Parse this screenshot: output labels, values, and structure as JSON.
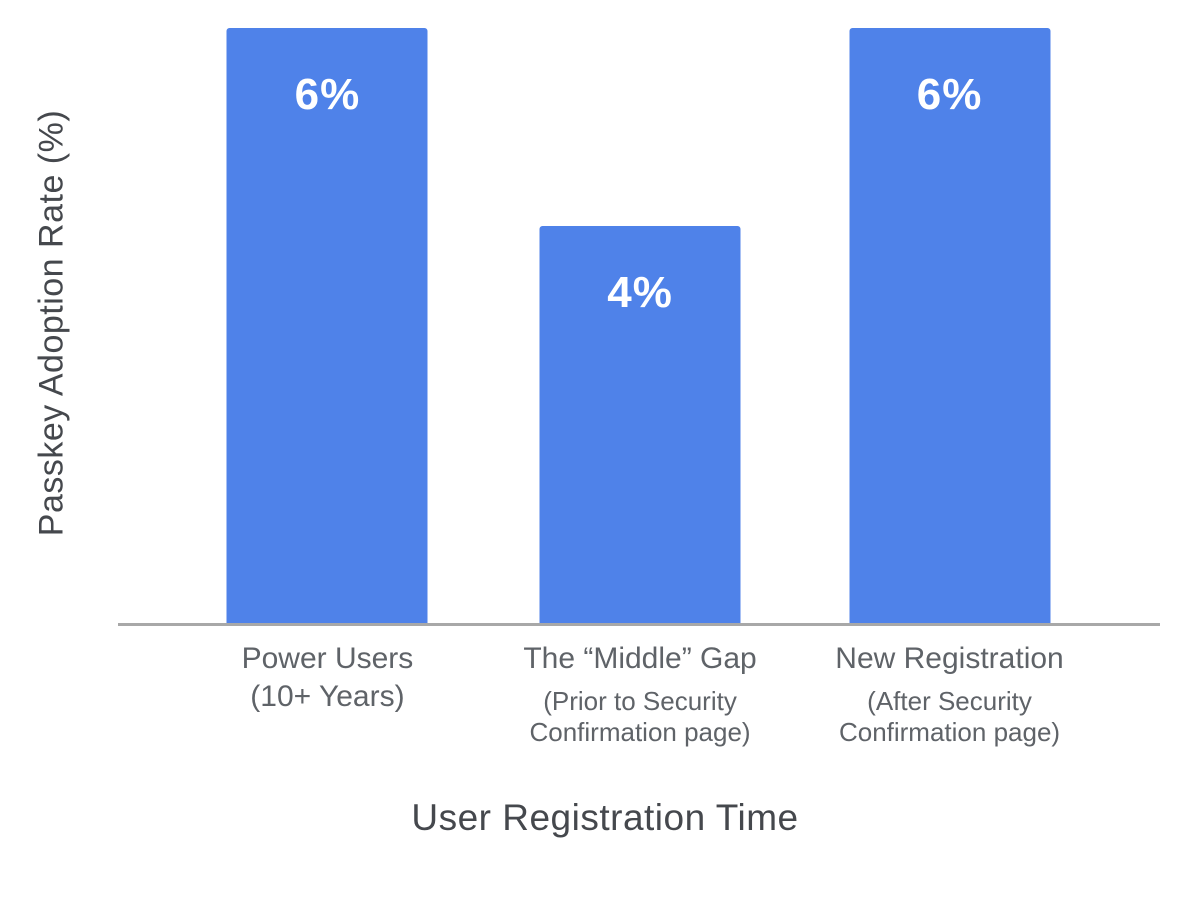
{
  "chart_data": {
    "type": "bar",
    "title": "",
    "xlabel": "User Registration Time",
    "ylabel": "Passkey Adoption Rate (%)",
    "ylim": [
      0,
      6
    ],
    "grid": false,
    "legend": false,
    "bar_color": "#4f82e9",
    "value_label_color": "#ffffff",
    "axis_line_color": "#a8a8a8",
    "categories": [
      {
        "label": "Power Users",
        "sublabel": "(10+ Years)",
        "sublabel_small": false
      },
      {
        "label": "The “Middle” Gap",
        "sublabel": "(Prior to Security\nConfirmation page)",
        "sublabel_small": true
      },
      {
        "label": "New Registration",
        "sublabel": "(After Security\nConfirmation page)",
        "sublabel_small": true
      }
    ],
    "values": [
      6,
      4,
      6
    ],
    "value_labels": [
      "6%",
      "4%",
      "6%"
    ]
  }
}
